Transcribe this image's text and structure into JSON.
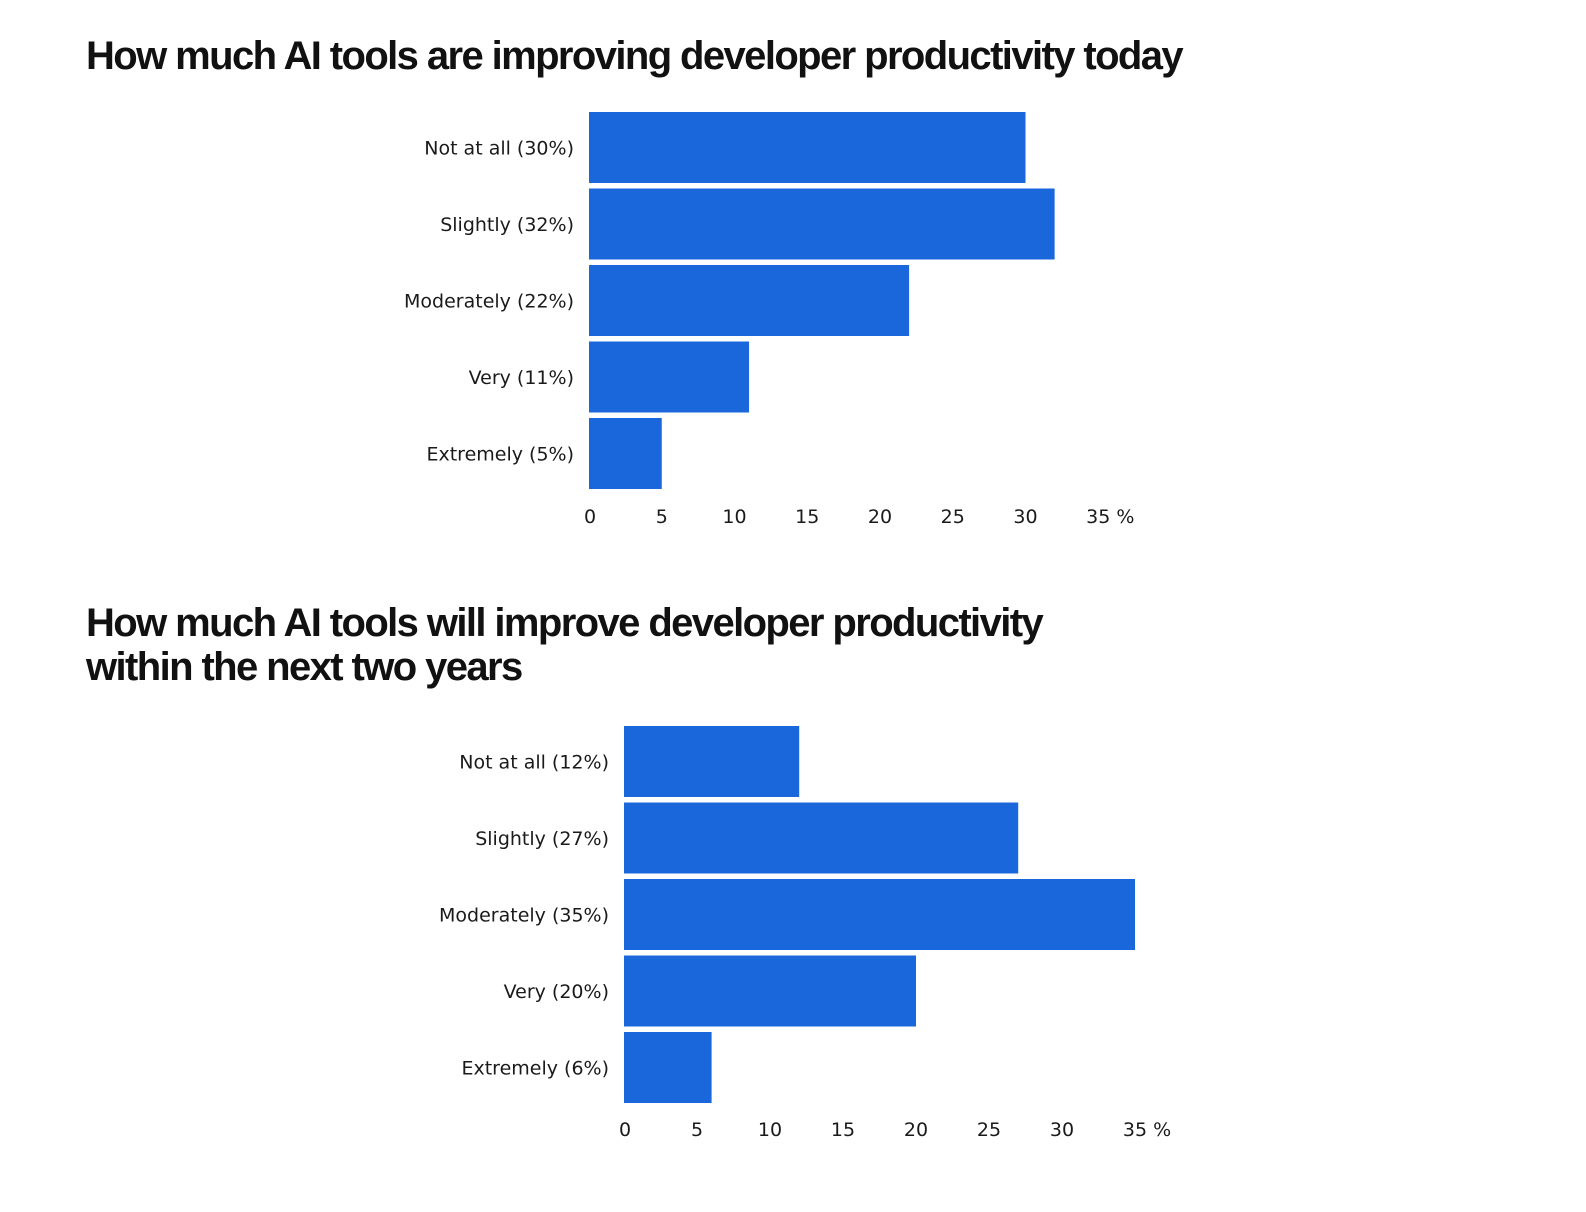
{
  "chart_data": [
    {
      "type": "bar",
      "orientation": "horizontal",
      "title": "How much AI tools are improving developer productivity today",
      "categories": [
        "Not at all (30%)",
        "Slightly (32%)",
        "Moderately (22%)",
        "Very (11%)",
        "Extremely (5%)"
      ],
      "values": [
        30,
        32,
        22,
        11,
        5
      ],
      "xlim": [
        0,
        35
      ],
      "xticks": [
        "0",
        "5",
        "10",
        "15",
        "20",
        "25",
        "30",
        "35 %"
      ],
      "grid": false,
      "bar_color": "#1a67dc"
    },
    {
      "type": "bar",
      "orientation": "horizontal",
      "title": "How much AI tools will improve developer productivity within the next two years",
      "title_lines": [
        "How much AI tools will improve developer productivity",
        "within the next two years"
      ],
      "categories": [
        "Not at all (12%)",
        "Slightly (27%)",
        "Moderately (35%)",
        "Very (20%)",
        "Extremely (6%)"
      ],
      "values": [
        12,
        27,
        35,
        20,
        6
      ],
      "xlim": [
        0,
        35
      ],
      "xticks": [
        "0",
        "5",
        "10",
        "15",
        "20",
        "25",
        "30",
        "35 %"
      ],
      "grid": false,
      "bar_color": "#1a67dc"
    }
  ]
}
